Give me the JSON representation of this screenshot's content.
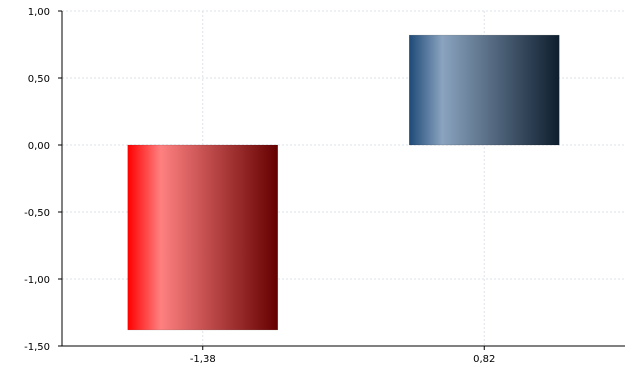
{
  "chart_data": {
    "type": "bar",
    "categories": [
      "-1,38",
      "0,82"
    ],
    "values": [
      -1.38,
      0.82
    ],
    "ylim": [
      -1.5,
      1.0
    ],
    "yticks": [
      1.0,
      0.5,
      0.0,
      -0.5,
      -1.0,
      -1.5
    ],
    "ytick_labels": [
      "1,00",
      "0,50",
      "0,00",
      "-0,50",
      "-1,00",
      "-1,50"
    ],
    "grid": true,
    "legend": "none",
    "bar_colors": [
      {
        "light": "#ff8080",
        "edge": "#ff0000",
        "dark": "#650000"
      },
      {
        "light": "#8aa3bf",
        "edge": "#1e4a78",
        "dark": "#0e1e2e"
      }
    ],
    "grid_color": "#dde3ea",
    "axis_color": "#000000"
  }
}
